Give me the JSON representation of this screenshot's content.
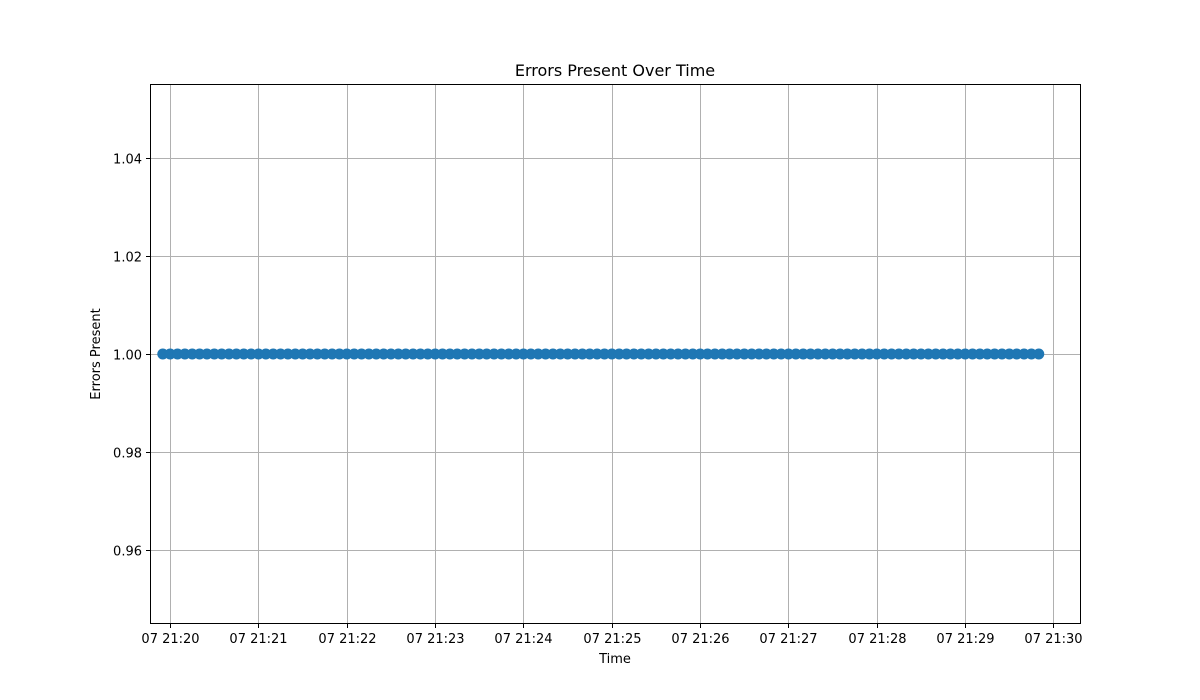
{
  "chart_data": {
    "type": "scatter",
    "title": "Errors Present Over Time",
    "xlabel": "Time",
    "ylabel": "Errors Present",
    "x_axis_type": "time",
    "xlim": [
      "21:19:47",
      "21:30:18"
    ],
    "ylim": [
      0.945,
      1.055
    ],
    "x_ticks": [
      "07 21:20",
      "07 21:21",
      "07 21:22",
      "07 21:23",
      "07 21:24",
      "07 21:25",
      "07 21:26",
      "07 21:27",
      "07 21:28",
      "07 21:29",
      "07 21:30"
    ],
    "y_ticks": [
      0.96,
      0.98,
      1.0,
      1.02,
      1.04
    ],
    "y_tick_labels": [
      "0.96",
      "0.98",
      "1.00",
      "1.02",
      "1.04"
    ],
    "grid": true,
    "series": [
      {
        "color": "#1f77b4",
        "x_start": "21:19:55",
        "x_end": "21:29:52",
        "x_step_seconds": 5,
        "y_constant": 1.0
      }
    ]
  }
}
